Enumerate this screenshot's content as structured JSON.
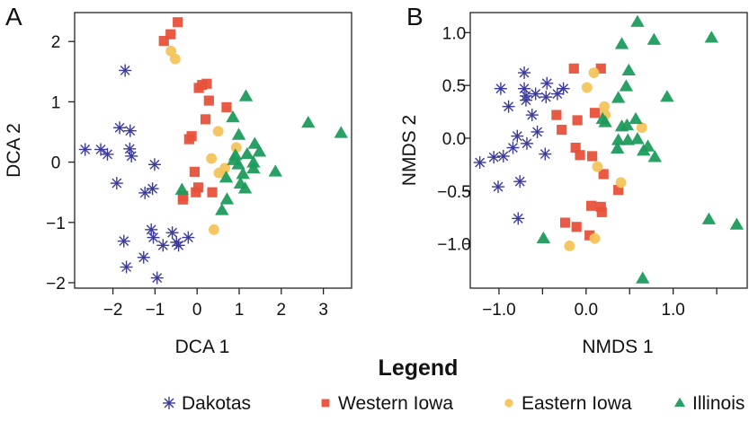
{
  "legend": {
    "title": "Legend",
    "entries": [
      {
        "name": "Dakotas",
        "color": "#3b3b9c",
        "marker": "asterisk"
      },
      {
        "name": "Western Iowa",
        "color": "#e8513b",
        "marker": "square"
      },
      {
        "name": "Eastern Iowa",
        "color": "#f4c45a",
        "marker": "circle"
      },
      {
        "name": "Illinois",
        "color": "#1d9b5c",
        "marker": "triangle"
      }
    ]
  },
  "chart_data": [
    {
      "type": "scatter",
      "panel_label": "A",
      "xlabel": "DCA 1",
      "ylabel": "DCA 2",
      "xlim": [
        -2.91,
        3.67
      ],
      "ylim": [
        -2.09,
        2.48
      ],
      "xticks": [
        {
          "v": -2,
          "label": "−2"
        },
        {
          "v": -1,
          "label": "−1"
        },
        {
          "v": 0,
          "label": "0"
        },
        {
          "v": 1,
          "label": "1"
        },
        {
          "v": 2,
          "label": "2"
        },
        {
          "v": 3,
          "label": "3"
        }
      ],
      "yticks": [
        {
          "v": -2,
          "label": "−2"
        },
        {
          "v": -1,
          "label": "−1"
        },
        {
          "v": 0,
          "label": "0"
        },
        {
          "v": 1,
          "label": "1"
        },
        {
          "v": 2,
          "label": "2"
        }
      ],
      "series": [
        {
          "name": "Dakotas",
          "points": [
            [
              -1.71,
              1.52
            ],
            [
              -1.84,
              0.57
            ],
            [
              -1.59,
              0.52
            ],
            [
              -2.66,
              0.21
            ],
            [
              -2.29,
              0.21
            ],
            [
              -2.13,
              0.13
            ],
            [
              -1.6,
              0.22
            ],
            [
              -1.56,
              0.1
            ],
            [
              -1.01,
              -0.04
            ],
            [
              -1.91,
              -0.35
            ],
            [
              -1.06,
              -0.44
            ],
            [
              -1.24,
              -0.51
            ],
            [
              -1.09,
              -1.12
            ],
            [
              -0.59,
              -1.17
            ],
            [
              -1.04,
              -1.25
            ],
            [
              -0.21,
              -1.25
            ],
            [
              -0.81,
              -1.38
            ],
            [
              -0.49,
              -1.33
            ],
            [
              -0.44,
              -1.38
            ],
            [
              -1.74,
              -1.31
            ],
            [
              -1.27,
              -1.58
            ],
            [
              -1.68,
              -1.74
            ],
            [
              -0.95,
              -1.92
            ]
          ]
        },
        {
          "name": "Western Iowa",
          "points": [
            [
              -0.46,
              2.32
            ],
            [
              -0.63,
              2.12
            ],
            [
              -0.79,
              2.01
            ],
            [
              0.04,
              1.23
            ],
            [
              0.12,
              1.28
            ],
            [
              0.23,
              1.3
            ],
            [
              0.28,
              1.02
            ],
            [
              0.7,
              0.91
            ],
            [
              0.2,
              0.71
            ],
            [
              -0.13,
              0.43
            ],
            [
              -0.19,
              0.38
            ],
            [
              -0.06,
              -0.16
            ],
            [
              0.03,
              -0.42
            ],
            [
              -0.03,
              -0.5
            ],
            [
              0.36,
              -0.5
            ],
            [
              -0.33,
              -0.56
            ],
            [
              -0.34,
              -0.62
            ]
          ]
        },
        {
          "name": "Eastern Iowa",
          "points": [
            [
              -0.62,
              1.84
            ],
            [
              -0.52,
              1.71
            ],
            [
              0.5,
              0.51
            ],
            [
              0.93,
              0.24
            ],
            [
              0.34,
              0.06
            ],
            [
              0.66,
              -0.1
            ],
            [
              0.52,
              -0.18
            ],
            [
              0.4,
              -1.12
            ]
          ]
        },
        {
          "name": "Illinois",
          "points": [
            [
              1.16,
              1.09
            ],
            [
              0.85,
              0.74
            ],
            [
              2.64,
              0.65
            ],
            [
              3.42,
              0.48
            ],
            [
              0.99,
              0.45
            ],
            [
              1.37,
              0.3
            ],
            [
              0.91,
              0.11
            ],
            [
              1.19,
              0.13
            ],
            [
              1.48,
              0.17
            ],
            [
              0.87,
              0.03
            ],
            [
              0.98,
              -0.04
            ],
            [
              1.34,
              -0.01
            ],
            [
              1.34,
              -0.11
            ],
            [
              1.09,
              -0.2
            ],
            [
              1.86,
              -0.16
            ],
            [
              0.69,
              -0.26
            ],
            [
              1.03,
              -0.36
            ],
            [
              1.14,
              -0.44
            ],
            [
              -0.36,
              -0.46
            ],
            [
              0.71,
              -0.62
            ],
            [
              0.59,
              -0.8
            ]
          ]
        }
      ]
    },
    {
      "type": "scatter",
      "panel_label": "B",
      "xlabel": "NMDS 1",
      "ylabel": "NMDS 2",
      "xlim": [
        -1.33,
        1.85
      ],
      "ylim": [
        -1.42,
        1.19
      ],
      "xticks": [
        {
          "v": -1.0,
          "label": "−1.0"
        },
        {
          "v": -0.5,
          "label": ""
        },
        {
          "v": 0.0,
          "label": "0.0"
        },
        {
          "v": 0.5,
          "label": ""
        },
        {
          "v": 1.0,
          "label": "1.0"
        },
        {
          "v": 1.5,
          "label": ""
        }
      ],
      "yticks": [
        {
          "v": -1.0,
          "label": "−1.0"
        },
        {
          "v": -0.5,
          "label": "−0.5"
        },
        {
          "v": 0.0,
          "label": "0.0"
        },
        {
          "v": 0.5,
          "label": "0.5"
        },
        {
          "v": 1.0,
          "label": "1.0"
        }
      ],
      "series": [
        {
          "name": "Dakotas",
          "points": [
            [
              -0.71,
              0.62
            ],
            [
              -0.98,
              0.47
            ],
            [
              -0.71,
              0.47
            ],
            [
              -0.45,
              0.52
            ],
            [
              -0.26,
              0.47
            ],
            [
              -0.58,
              0.42
            ],
            [
              -0.69,
              0.4
            ],
            [
              -0.69,
              0.36
            ],
            [
              -0.46,
              0.39
            ],
            [
              -0.33,
              0.42
            ],
            [
              -0.89,
              0.3
            ],
            [
              -0.62,
              0.22
            ],
            [
              -0.56,
              0.06
            ],
            [
              -0.79,
              0.02
            ],
            [
              -0.68,
              -0.05
            ],
            [
              -0.84,
              -0.09
            ],
            [
              -0.95,
              -0.17
            ],
            [
              -1.06,
              -0.18
            ],
            [
              -1.22,
              -0.23
            ],
            [
              -0.47,
              -0.15
            ],
            [
              -0.76,
              -0.41
            ],
            [
              -1.01,
              -0.46
            ],
            [
              -0.78,
              -0.76
            ]
          ]
        },
        {
          "name": "Western Iowa",
          "points": [
            [
              -0.14,
              0.66
            ],
            [
              0.17,
              0.66
            ],
            [
              -0.34,
              0.22
            ],
            [
              0.1,
              0.24
            ],
            [
              -0.1,
              0.17
            ],
            [
              -0.28,
              0.08
            ],
            [
              -0.12,
              -0.09
            ],
            [
              -0.07,
              -0.16
            ],
            [
              0.07,
              -0.17
            ],
            [
              0.2,
              -0.34
            ],
            [
              0.37,
              -0.49
            ],
            [
              0.06,
              -0.64
            ],
            [
              0.17,
              -0.65
            ],
            [
              0.18,
              -0.7
            ],
            [
              -0.24,
              -0.8
            ],
            [
              -0.11,
              -0.84
            ],
            [
              0.04,
              -0.92
            ]
          ]
        },
        {
          "name": "Eastern Iowa",
          "points": [
            [
              0.09,
              0.62
            ],
            [
              0.01,
              0.48
            ],
            [
              0.21,
              0.3
            ],
            [
              0.22,
              0.22
            ],
            [
              0.64,
              0.1
            ],
            [
              0.13,
              -0.27
            ],
            [
              0.4,
              -0.42
            ],
            [
              0.1,
              -0.95
            ],
            [
              -0.19,
              -1.02
            ]
          ]
        },
        {
          "name": "Illinois",
          "points": [
            [
              0.59,
              1.1
            ],
            [
              0.41,
              0.89
            ],
            [
              0.78,
              0.93
            ],
            [
              1.44,
              0.95
            ],
            [
              0.49,
              0.64
            ],
            [
              0.46,
              0.49
            ],
            [
              0.37,
              0.38
            ],
            [
              0.93,
              0.39
            ],
            [
              0.19,
              0.18
            ],
            [
              0.22,
              0.15
            ],
            [
              0.57,
              0.18
            ],
            [
              0.41,
              0.11
            ],
            [
              0.47,
              0.12
            ],
            [
              0.37,
              -0.02
            ],
            [
              0.48,
              -0.02
            ],
            [
              0.59,
              -0.01
            ],
            [
              0.71,
              -0.08
            ],
            [
              0.36,
              -0.1
            ],
            [
              0.66,
              -0.12
            ],
            [
              0.79,
              -0.18
            ],
            [
              1.41,
              -0.77
            ],
            [
              1.73,
              -0.82
            ],
            [
              -0.49,
              -0.95
            ],
            [
              0.65,
              -1.33
            ]
          ]
        }
      ]
    }
  ]
}
